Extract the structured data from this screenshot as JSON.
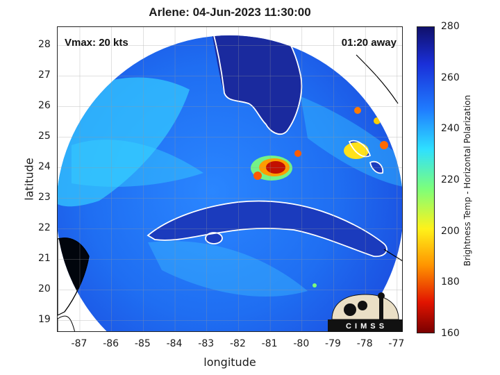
{
  "map": {
    "title": "Arlene: 04-Jun-2023 11:30:00",
    "vmax": "Vmax: 20 kts",
    "away": "01:20 away",
    "xlabel": "longitude",
    "ylabel": "latitude",
    "x_ticks": [
      "-87",
      "-86",
      "-85",
      "-84",
      "-83",
      "-82",
      "-81",
      "-80",
      "-79",
      "-78",
      "-77"
    ],
    "y_ticks": [
      "28",
      "27",
      "26",
      "25",
      "24",
      "23",
      "22",
      "21",
      "20",
      "19"
    ],
    "lon_range": [
      -87.7,
      -76.8
    ],
    "lat_range": [
      18.6,
      28.6
    ],
    "colors": {
      "swath_base": "#1f64f0",
      "warm_band": "#2fc0ff",
      "coast": "#ffffff",
      "land_outside": "#000000"
    }
  },
  "colorbar": {
    "label": "Brightness Temp - Horizontal Polarization",
    "ticks": [
      "280",
      "260",
      "240",
      "220",
      "200",
      "180",
      "160"
    ],
    "range": [
      160,
      280
    ]
  },
  "logo": {
    "text": "C I M S S"
  }
}
